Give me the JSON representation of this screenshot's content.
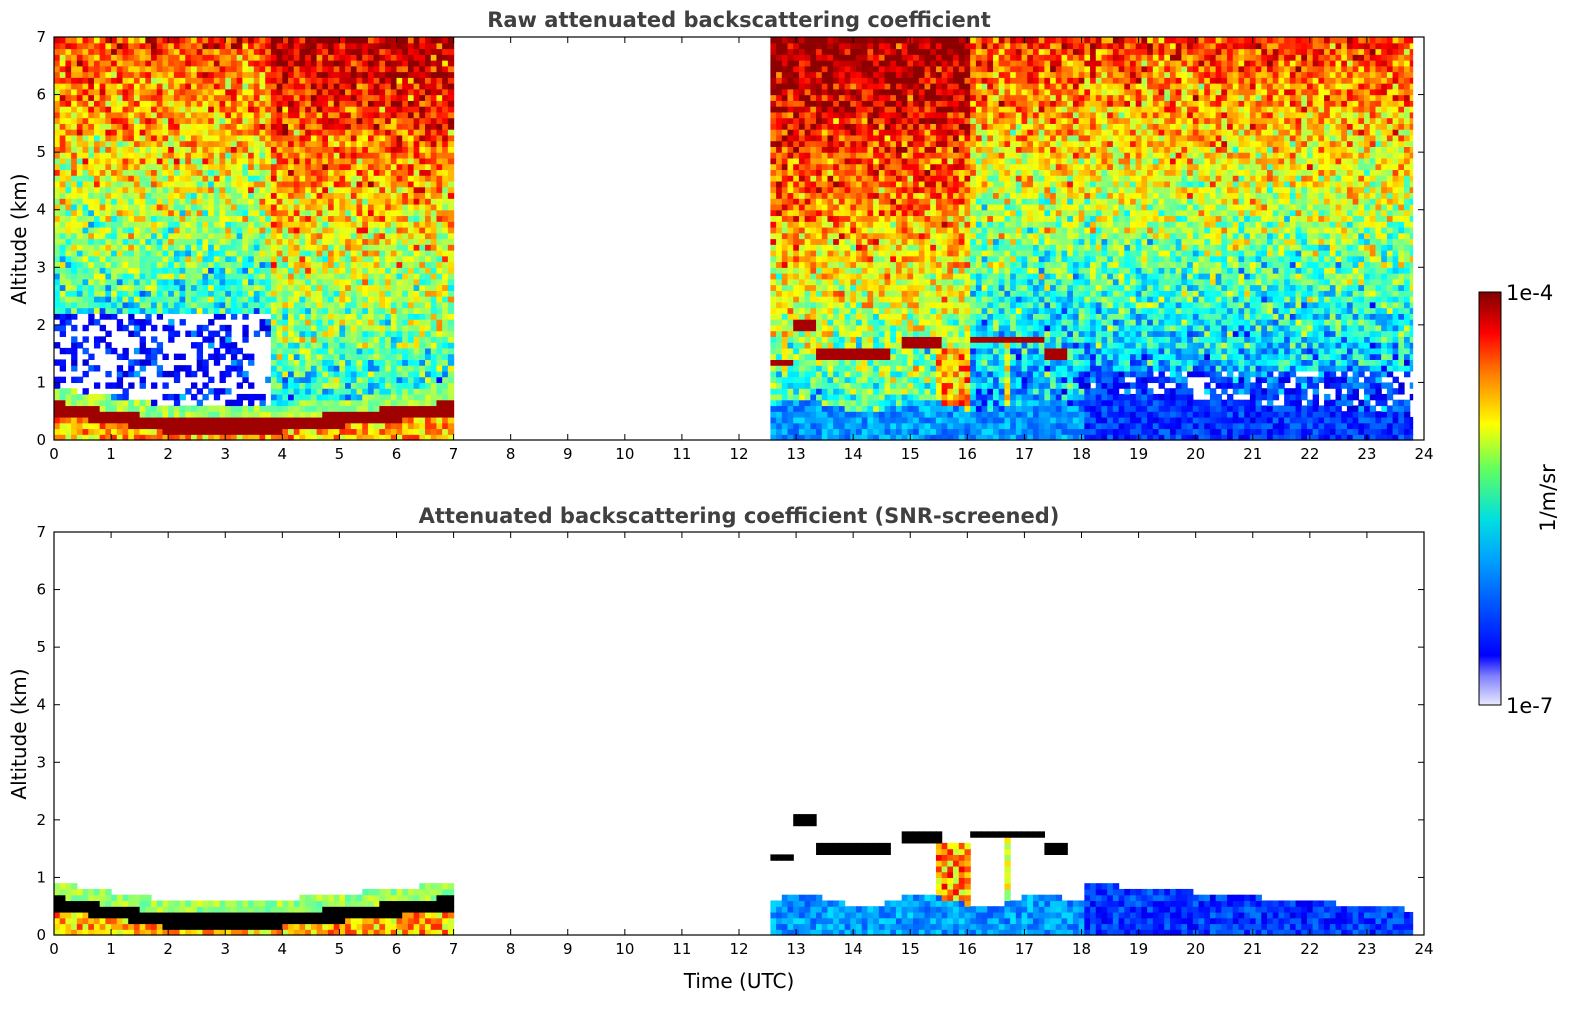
{
  "chart_data": [
    {
      "type": "heatmap",
      "title": "Raw attenuated backscattering coefficient",
      "xlabel": "",
      "ylabel": "Altitude (km)",
      "xlim": [
        0,
        24
      ],
      "ylim": [
        0,
        7
      ],
      "xticks": [
        "0",
        "1",
        "2",
        "3",
        "4",
        "5",
        "6",
        "7",
        "8",
        "9",
        "10",
        "11",
        "12",
        "13",
        "14",
        "15",
        "16",
        "17",
        "18",
        "19",
        "20",
        "21",
        "22",
        "23",
        "24"
      ],
      "yticks": [
        "0",
        "1",
        "2",
        "3",
        "4",
        "5",
        "6",
        "7"
      ],
      "data_segments_utc": [
        [
          0,
          7.0
        ],
        [
          12.55,
          23.8
        ]
      ],
      "screened": false
    },
    {
      "type": "heatmap",
      "title": "Attenuated backscattering coefficient (SNR-screened)",
      "xlabel": "Time (UTC)",
      "ylabel": "Altitude (km)",
      "xlim": [
        0,
        24
      ],
      "ylim": [
        0,
        7
      ],
      "xticks": [
        "0",
        "1",
        "2",
        "3",
        "4",
        "5",
        "6",
        "7",
        "8",
        "9",
        "10",
        "11",
        "12",
        "13",
        "14",
        "15",
        "16",
        "17",
        "18",
        "19",
        "20",
        "21",
        "22",
        "23",
        "24"
      ],
      "yticks": [
        "0",
        "1",
        "2",
        "3",
        "4",
        "5",
        "6",
        "7"
      ],
      "data_segments_utc": [
        [
          0,
          7.0
        ],
        [
          12.55,
          23.8
        ]
      ],
      "screened": true
    }
  ],
  "colorbar": {
    "max_label": "1e-4",
    "min_label": "1e-7",
    "unit_label": "1/m/sr",
    "colormap": "jet",
    "colors": [
      "#ffffff",
      "#0000ff",
      "#00c0ff",
      "#00ff80",
      "#ffff00",
      "#ff8000",
      "#ff0000",
      "#800000"
    ]
  }
}
